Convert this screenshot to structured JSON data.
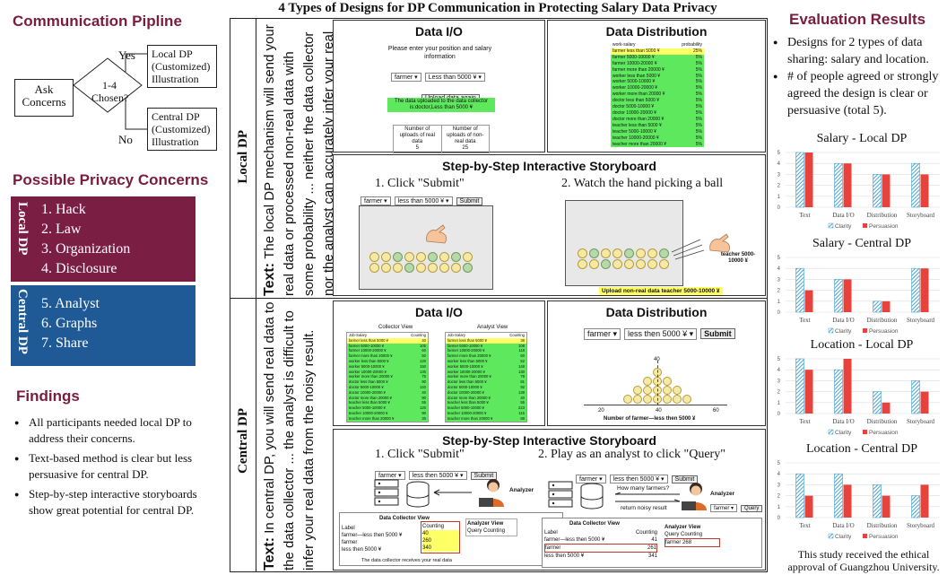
{
  "left": {
    "pipeline_title": "Communication Pipline",
    "ask_concerns": "Ask Concerns",
    "decision": "1-4 Chosen?",
    "yes": "Yes",
    "no": "No",
    "local_dp_box": "Local DP (Customized) Illustration",
    "central_dp_box": "Central DP (Customized) Illustration",
    "concerns_title": "Possible Privacy Concerns",
    "local_dp_label": "Local DP",
    "central_dp_label": "Central DP",
    "local_concerns": [
      "1.  Hack",
      "2.  Law",
      "3.  Organization",
      "4.  Disclosure"
    ],
    "central_concerns": [
      "5.  Analyst",
      "6.  Graphs",
      "7.  Share"
    ],
    "findings_title": "Findings",
    "findings": [
      "All participants needed local DP to address their concerns.",
      "Text-based method is clear but less persuasive for central DP.",
      "Step-by-step interactive storyboards show great potential for central DP."
    ]
  },
  "middle": {
    "title": "4 Types of Designs for DP Communication in Protecting Salary Data Privacy",
    "local_row_label": "Local DP",
    "central_row_label": "Central DP",
    "text_prefix": "Text:",
    "local_text": "The local DP mechanism will send your real data or processed non-real data with some probability ... neither the data collector nor the analyst can accurately infer your real data.",
    "central_text": "In central DP, you will send real data to the data collector ... the analyst is difficult to infer your real data from the noisy result.",
    "data_io": "Data I/O",
    "data_distribution": "Data Distribution",
    "storyboard": "Step-by-Step Interactive Storyboard",
    "local_io": {
      "prompt": "Please enter your position and salary information",
      "position": "farmer",
      "salary": "Less than 5000 ¥",
      "button": "Upload data again",
      "notice": "The data uploaded to the data collector is:doctor,Less than 5000 ¥",
      "col1": "Number of uploads of real data",
      "col2": "Number of uploads of non-real data",
      "v1": "5",
      "v2": "25"
    },
    "local_dist": {
      "h1": "work-salary",
      "h2": "probability",
      "rows": [
        [
          "farmer less than 5000 ¥",
          "25%"
        ],
        [
          "farmer 5000-10000 ¥",
          "5%"
        ],
        [
          "farmer 10000-20000 ¥",
          "5%"
        ],
        [
          "farmer more than 20000 ¥",
          "5%"
        ],
        [
          "worker less than 5000 ¥",
          "5%"
        ],
        [
          "worker 5000-10000 ¥",
          "5%"
        ],
        [
          "worker 10000-20000 ¥",
          "5%"
        ],
        [
          "worker more than 20000 ¥",
          "5%"
        ],
        [
          "doctor less than 5000 ¥",
          "5%"
        ],
        [
          "doctor 5000-10000 ¥",
          "5%"
        ],
        [
          "doctor 10000-20000 ¥",
          "5%"
        ],
        [
          "doctor more than 20000 ¥",
          "5%"
        ],
        [
          "teacher less than 5000 ¥",
          "5%"
        ],
        [
          "teacher 5000-10000 ¥",
          "5%"
        ],
        [
          "teacher 10000-20000 ¥",
          "5%"
        ],
        [
          "teacher more than 20000 ¥",
          "5%"
        ]
      ]
    },
    "local_story": {
      "step1": "1. Click \"Submit\"",
      "step2": "2. Watch the hand picking a ball",
      "position": "farmer",
      "salary": "less than 5000 ¥",
      "submit": "Submit",
      "teacher_label": "teacher 5000-10000 ¥",
      "upload_notice": "Upload non-real data teacher 5000-10000 ¥"
    },
    "central_io": {
      "collector_view": "Collector View",
      "analyst_view": "Analyst View",
      "h1": "Job-Salary",
      "h2": "Counting",
      "collector_rows": [
        [
          "farmer less than 5000 ¥",
          "40"
        ],
        [
          "farmer 5000-10000 ¥",
          "105"
        ],
        [
          "farmer 10000-20000 ¥",
          "60"
        ],
        [
          "farmer more than 20000 ¥",
          "50"
        ],
        [
          "worker less than 5000 ¥",
          "120"
        ],
        [
          "worker 5000-10000 ¥",
          "150"
        ],
        [
          "worker 10000-20000 ¥",
          "130"
        ],
        [
          "worker more than 20000 ¥",
          "75"
        ],
        [
          "doctor less than 5000 ¥",
          "90"
        ],
        [
          "doctor 5000-10000 ¥",
          "140"
        ],
        [
          "doctor 10000-20000 ¥",
          "40"
        ],
        [
          "doctor more than 20000 ¥",
          "90"
        ],
        [
          "teacher less than 5000 ¥",
          "55"
        ],
        [
          "teacher 5000-10000 ¥",
          "120"
        ],
        [
          "teacher 10000-20000 ¥",
          "90"
        ],
        [
          "teacher more than 20000 ¥",
          "30"
        ]
      ],
      "analyst_rows": [
        [
          "farmer less than 5000 ¥",
          "38"
        ],
        [
          "farmer 5000-10000 ¥",
          "108"
        ],
        [
          "farmer 10000-20000 ¥",
          "118"
        ],
        [
          "farmer more than 20000 ¥",
          "60"
        ],
        [
          "worker less than 5000 ¥",
          "52"
        ],
        [
          "worker 5000-10000 ¥",
          "148"
        ],
        [
          "worker 10000-20000 ¥",
          "130"
        ],
        [
          "worker more than 20000 ¥",
          "78"
        ],
        [
          "doctor less than 5000 ¥",
          "81"
        ],
        [
          "doctor 5000-10000 ¥",
          "92"
        ],
        [
          "doctor 10000-20000 ¥",
          "138"
        ],
        [
          "doctor more than 20000 ¥",
          "40"
        ],
        [
          "teacher less than 5000 ¥",
          "55"
        ],
        [
          "teacher 5000-10000 ¥",
          "223"
        ],
        [
          "teacher 10000-20000 ¥",
          "115"
        ],
        [
          "teacher more than 20000 ¥",
          "88"
        ]
      ]
    },
    "central_dist": {
      "position": "farmer",
      "salary": "less then 5000 ¥",
      "submit": "Submit",
      "peak": "40",
      "ticks": [
        "20",
        "40",
        "60"
      ],
      "xlabel": "Number of farmer—less then 5000 ¥"
    },
    "central_story": {
      "step1": "1. Click \"Submit\"",
      "step2": "2. Play as an analyst to click \"Query\"",
      "position": "farmer",
      "salary": "less then 5000 ¥",
      "submit": "Submit",
      "analyst": "Analyzer",
      "question": "How many farmers?",
      "return_noisy": "return noisy result",
      "query": "Query",
      "collector_view": "Data Collector View",
      "analyst_view": "Analyzer View",
      "label": "Label",
      "counting": "Counting",
      "query_label": "Query",
      "rows_left": [
        [
          "farmer—less then 5000 ¥",
          "40"
        ],
        [
          "farmer",
          "260"
        ],
        [
          "less then 5000 ¥",
          "340"
        ]
      ],
      "counting_values": [
        "40",
        "260",
        "340"
      ],
      "receive_note": "The data collector receives your real data",
      "rows_right": [
        [
          "farmer—less then 5000 ¥",
          "41"
        ],
        [
          "farmer",
          "261"
        ],
        [
          "less then 5000 ¥",
          "341"
        ]
      ],
      "analyst_result": [
        "farmer",
        "268"
      ]
    }
  },
  "right": {
    "title": "Evaluation Results",
    "bullets": [
      "Designs for 2 types of data sharing: salary and location.",
      "# of people agreed or strongly agreed the design is clear or persuasive (total 5)."
    ],
    "ethics": "This study received the ethical approval of Guangzhou University."
  },
  "chart_data": [
    {
      "type": "bar",
      "title": "Salary - Local DP",
      "categories": [
        "Text",
        "Data I/O",
        "Distribution",
        "Storyboard"
      ],
      "series": [
        {
          "name": "Clarity",
          "values": [
            5,
            4,
            3,
            4
          ]
        },
        {
          "name": "Persuasion",
          "values": [
            5,
            4,
            3,
            3
          ]
        }
      ],
      "ylim": [
        0,
        5
      ],
      "yticks": [
        "0",
        "1",
        "2",
        "3",
        "4",
        "5"
      ],
      "colors": [
        "#4aa3cf",
        "#e8423d"
      ]
    },
    {
      "type": "bar",
      "title": "Salary - Central DP",
      "categories": [
        "Text",
        "Data I/O",
        "Distribution",
        "Storyboard"
      ],
      "series": [
        {
          "name": "Clarity",
          "values": [
            4,
            3,
            1,
            4
          ]
        },
        {
          "name": "Persuasion",
          "values": [
            2,
            3,
            1,
            4
          ]
        }
      ],
      "ylim": [
        0,
        5
      ],
      "yticks": [
        "0",
        "1",
        "2",
        "3",
        "4",
        "5"
      ],
      "colors": [
        "#4aa3cf",
        "#e8423d"
      ]
    },
    {
      "type": "bar",
      "title": "Location - Local DP",
      "categories": [
        "Text",
        "Data I/O",
        "Distribution",
        "Storyboard"
      ],
      "series": [
        {
          "name": "Clarity",
          "values": [
            5,
            4,
            2,
            3
          ]
        },
        {
          "name": "Persuasion",
          "values": [
            4,
            5,
            1,
            2
          ]
        }
      ],
      "ylim": [
        0,
        5
      ],
      "yticks": [
        "0",
        "1",
        "2",
        "3",
        "4",
        "5"
      ],
      "colors": [
        "#4aa3cf",
        "#e8423d"
      ]
    },
    {
      "type": "bar",
      "title": "Location - Central DP",
      "categories": [
        "Text",
        "Data I/O",
        "Distribution",
        "Storyboard"
      ],
      "series": [
        {
          "name": "Clarity",
          "values": [
            4,
            4,
            3,
            2
          ]
        },
        {
          "name": "Persuasion",
          "values": [
            2,
            3,
            2,
            3
          ]
        }
      ],
      "ylim": [
        0,
        5
      ],
      "yticks": [
        "0",
        "1",
        "2",
        "3",
        "4",
        "5"
      ],
      "colors": [
        "#4aa3cf",
        "#e8423d"
      ]
    }
  ]
}
